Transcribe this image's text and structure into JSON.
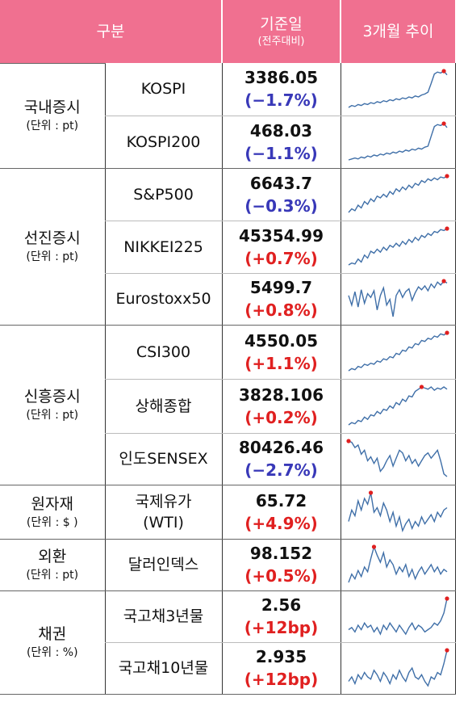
{
  "header": {
    "col1": "구분",
    "col2_main": "기준일",
    "col2_sub": "(전주대비)",
    "col3": "3개월 추이"
  },
  "groups": [
    {
      "name": "국내증시",
      "unit": "(단위 : pt)",
      "rows": [
        {
          "index": "KOSPI",
          "value": "3386.05",
          "change": "(−1.7%)",
          "dir": "neg"
        },
        {
          "index": "KOSPI200",
          "value": "468.03",
          "change": "(−1.1%)",
          "dir": "neg"
        }
      ]
    },
    {
      "name": "선진증시",
      "unit": "(단위 : pt)",
      "rows": [
        {
          "index": "S&P500",
          "value": "6643.7",
          "change": "(−0.3%)",
          "dir": "neg"
        },
        {
          "index": "NIKKEI225",
          "value": "45354.99",
          "change": "(+0.7%)",
          "dir": "pos"
        },
        {
          "index": "Eurostoxx50",
          "value": "5499.7",
          "change": "(+0.8%)",
          "dir": "pos"
        }
      ]
    },
    {
      "name": "신흥증시",
      "unit": "(단위 : pt)",
      "rows": [
        {
          "index": "CSI300",
          "value": "4550.05",
          "change": "(+1.1%)",
          "dir": "pos"
        },
        {
          "index": "상해종합",
          "value": "3828.106",
          "change": "(+0.2%)",
          "dir": "pos"
        },
        {
          "index": "인도SENSEX",
          "value": "80426.46",
          "change": "(−2.7%)",
          "dir": "neg"
        }
      ]
    },
    {
      "name": "원자재",
      "unit": "(단위 : $ )",
      "rows": [
        {
          "index": "국제유가\n(WTI)",
          "value": "65.72",
          "change": "(+4.9%)",
          "dir": "pos"
        }
      ]
    },
    {
      "name": "외환",
      "unit": "(단위 : pt)",
      "rows": [
        {
          "index": "달러인덱스",
          "value": "98.152",
          "change": "(+0.5%)",
          "dir": "pos"
        }
      ]
    },
    {
      "name": "채권",
      "unit": "(단위 : %)",
      "rows": [
        {
          "index": "국고채3년물",
          "value": "2.56",
          "change": "(+12bp)",
          "dir": "pos"
        },
        {
          "index": "국고채10년물",
          "value": "2.935",
          "change": "(+12bp)",
          "dir": "pos"
        }
      ]
    }
  ],
  "colors": {
    "header_bg": "#f07090",
    "negative": "#3838b8",
    "positive": "#e02020",
    "sparkline": "#3f6fa8",
    "marker": "#e02020"
  },
  "sparklines": [
    [
      10,
      12,
      11,
      13,
      12,
      14,
      13,
      15,
      14,
      16,
      15,
      17,
      16,
      18,
      17,
      19,
      18,
      20,
      19,
      21,
      20,
      22,
      21,
      23,
      24,
      26,
      35,
      45,
      47,
      46,
      48,
      44
    ],
    [
      10,
      11,
      12,
      11,
      13,
      12,
      14,
      13,
      15,
      14,
      16,
      15,
      17,
      16,
      18,
      17,
      19,
      18,
      20,
      19,
      21,
      20,
      22,
      21,
      23,
      24,
      34,
      44,
      46,
      45,
      47,
      43
    ],
    [
      10,
      14,
      12,
      18,
      15,
      22,
      19,
      25,
      22,
      28,
      26,
      30,
      27,
      33,
      30,
      36,
      33,
      38,
      35,
      40,
      37,
      42,
      40,
      45,
      43,
      47,
      45,
      48,
      46,
      49,
      48,
      50
    ],
    [
      8,
      10,
      9,
      14,
      11,
      18,
      15,
      22,
      20,
      24,
      21,
      26,
      23,
      28,
      26,
      30,
      27,
      32,
      29,
      34,
      31,
      36,
      33,
      38,
      36,
      40,
      38,
      42,
      41,
      44,
      43,
      45
    ],
    [
      30,
      20,
      34,
      18,
      36,
      22,
      32,
      28,
      35,
      15,
      30,
      38,
      20,
      26,
      8,
      30,
      36,
      28,
      34,
      37,
      25,
      33,
      39,
      36,
      40,
      35,
      42,
      38,
      44,
      41,
      45,
      43
    ],
    [
      10,
      12,
      11,
      14,
      13,
      16,
      15,
      17,
      16,
      19,
      18,
      21,
      20,
      23,
      22,
      26,
      25,
      29,
      28,
      32,
      31,
      35,
      34,
      38,
      37,
      40,
      39,
      42,
      41,
      44,
      43,
      45
    ],
    [
      8,
      10,
      9,
      12,
      11,
      15,
      13,
      17,
      16,
      20,
      18,
      22,
      21,
      25,
      23,
      28,
      26,
      31,
      29,
      34,
      33,
      38,
      40,
      42,
      41,
      40,
      42,
      39,
      41,
      40,
      42,
      40
    ],
    [
      45,
      44,
      40,
      42,
      35,
      38,
      30,
      33,
      28,
      32,
      22,
      25,
      30,
      34,
      26,
      32,
      38,
      36,
      30,
      34,
      28,
      31,
      26,
      30,
      34,
      36,
      32,
      35,
      38,
      30,
      20,
      18
    ],
    [
      20,
      30,
      25,
      38,
      30,
      40,
      35,
      45,
      28,
      32,
      25,
      36,
      30,
      20,
      28,
      16,
      24,
      12,
      18,
      22,
      14,
      20,
      16,
      24,
      18,
      22,
      26,
      20,
      28,
      24,
      30,
      32
    ],
    [
      15,
      22,
      18,
      25,
      20,
      28,
      24,
      35,
      45,
      38,
      32,
      40,
      28,
      34,
      30,
      22,
      28,
      24,
      30,
      20,
      26,
      18,
      24,
      28,
      22,
      26,
      30,
      24,
      28,
      22,
      26,
      24
    ],
    [
      20,
      22,
      18,
      24,
      20,
      26,
      22,
      24,
      18,
      22,
      16,
      24,
      20,
      26,
      22,
      18,
      24,
      20,
      16,
      22,
      26,
      20,
      24,
      22,
      18,
      20,
      22,
      26,
      24,
      28,
      35,
      48
    ],
    [
      18,
      22,
      16,
      24,
      20,
      26,
      22,
      20,
      28,
      24,
      18,
      26,
      22,
      16,
      24,
      20,
      28,
      22,
      18,
      26,
      30,
      22,
      20,
      24,
      18,
      14,
      22,
      20,
      26,
      24,
      34,
      46
    ]
  ]
}
